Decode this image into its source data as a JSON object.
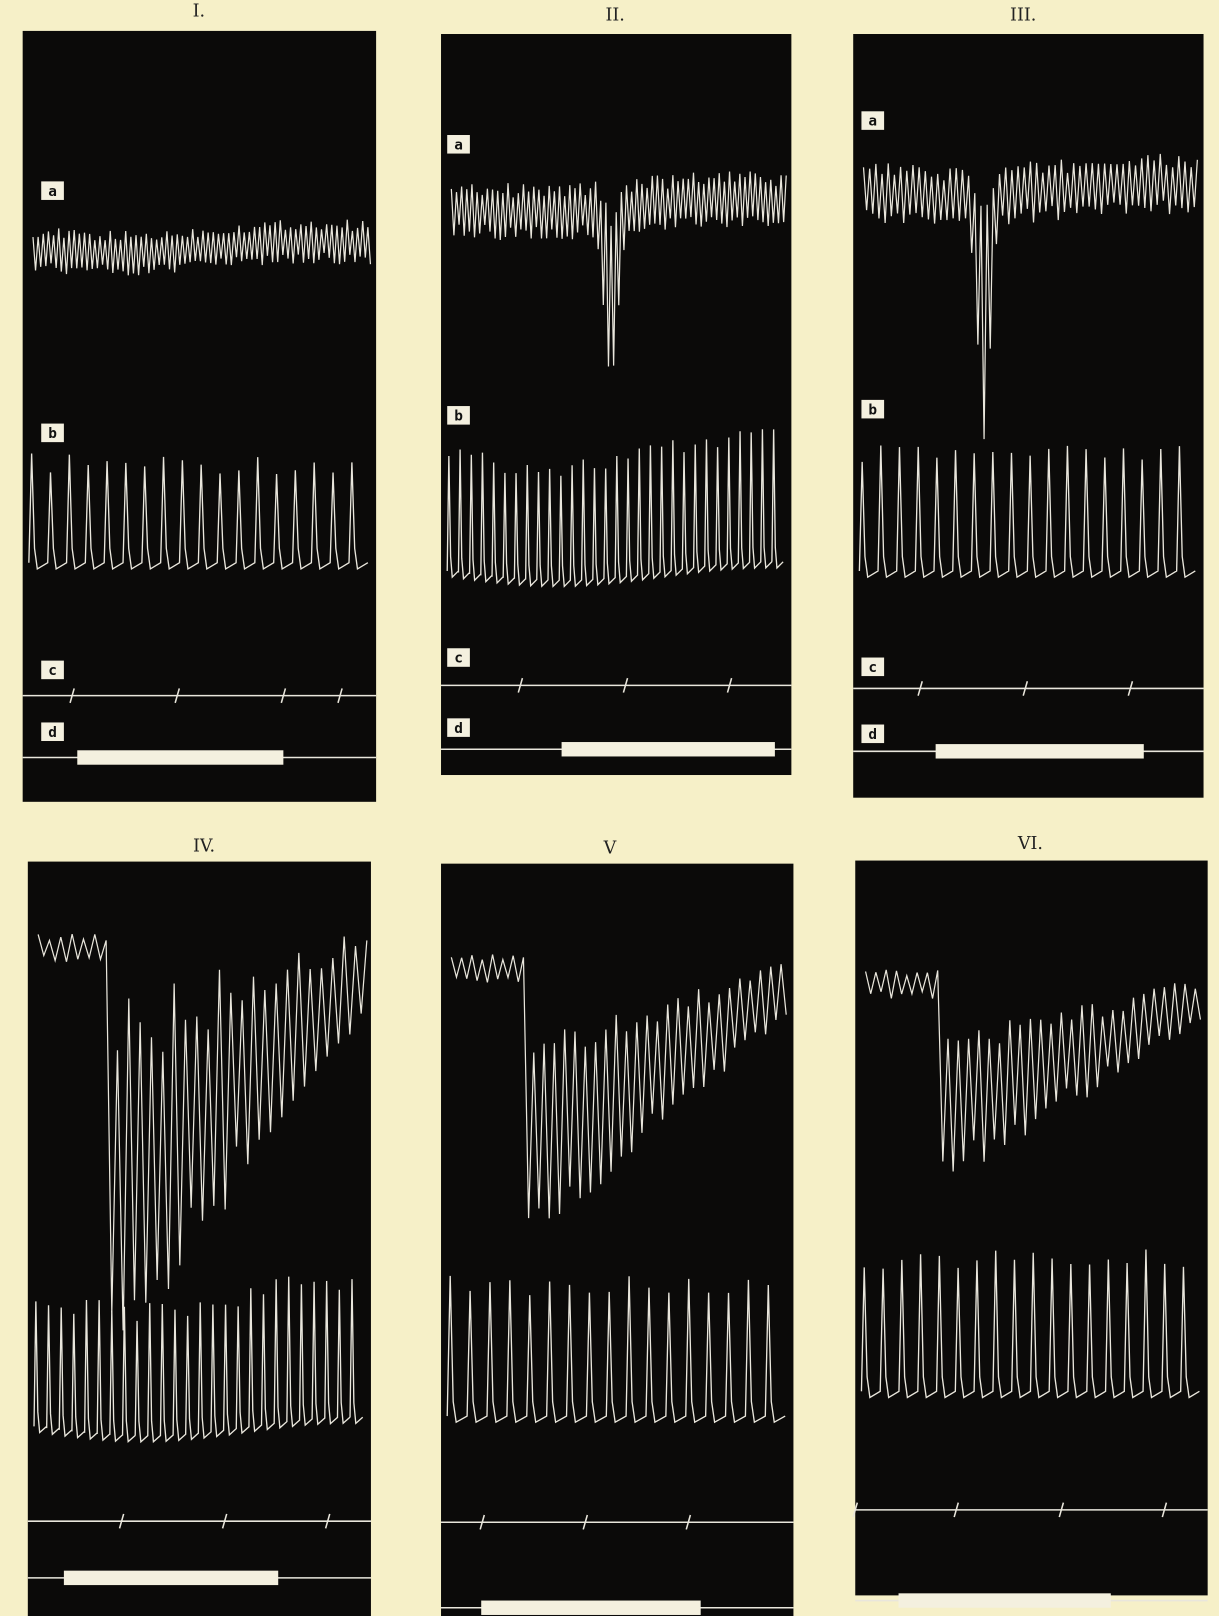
{
  "panels": [
    {
      "label": "I.",
      "traces": [
        "a",
        "b",
        "c",
        "d"
      ]
    },
    {
      "label": "II.",
      "traces": [
        "a",
        "b",
        "c",
        "d"
      ]
    },
    {
      "label": "III.",
      "traces": [
        "a",
        "b",
        "c",
        "d"
      ]
    },
    {
      "label": "IV."
    },
    {
      "label": "V"
    },
    {
      "label": "VI."
    }
  ]
}
